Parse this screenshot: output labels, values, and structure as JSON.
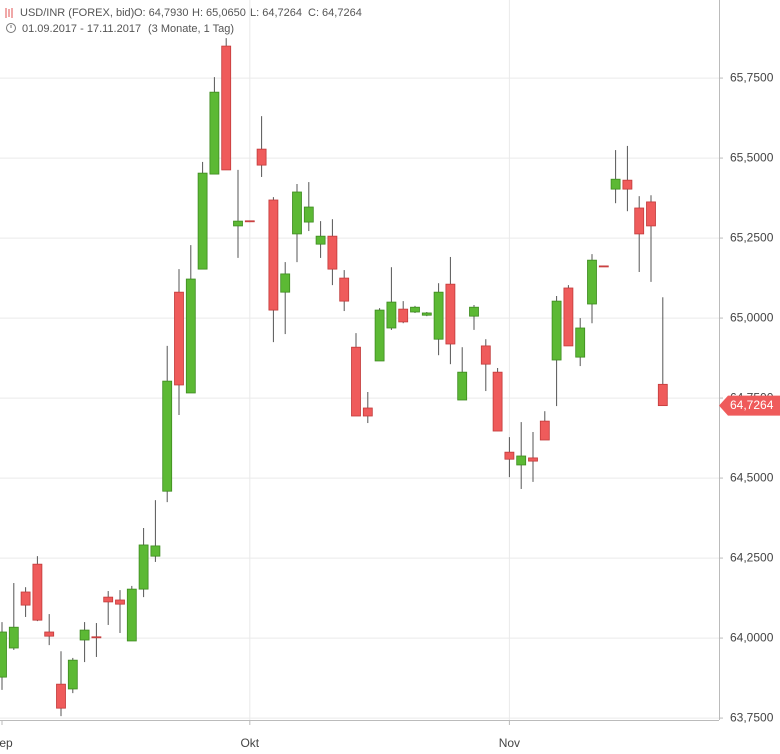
{
  "chart_data": {
    "type": "candlestick",
    "header": {
      "symbol": "USD/INR (FOREX, bid)",
      "open": "O: 64,7930",
      "high": "H: 65,0650",
      "low": "L: 64,7264",
      "close": "C: 64,7264",
      "range": "01.09.2017 - 17.11.2017",
      "period": "(3 Monate, 1 Tag)"
    },
    "categories": [
      "Sep",
      null,
      null,
      null,
      null,
      null,
      null,
      null,
      null,
      null,
      null,
      null,
      null,
      null,
      null,
      null,
      null,
      null,
      null,
      null,
      null,
      "Okt",
      null,
      null,
      null,
      null,
      null,
      null,
      null,
      null,
      null,
      null,
      null,
      null,
      null,
      null,
      null,
      null,
      null,
      null,
      null,
      null,
      null,
      "Nov",
      null,
      null,
      null,
      null,
      null,
      null,
      null,
      null,
      null,
      null,
      null,
      null,
      null
    ],
    "open": [
      63.878,
      63.969,
      64.144,
      64.231,
      64.019,
      63.856,
      63.841,
      63.994,
      64.004,
      64.128,
      64.119,
      63.991,
      64.153,
      64.256,
      64.459,
      65.081,
      64.766,
      65.153,
      65.45,
      65.85,
      65.288,
      65.304,
      65.528,
      65.369,
      65.081,
      65.263,
      65.3,
      65.231,
      65.256,
      65.125,
      64.909,
      64.719,
      64.866,
      64.969,
      65.028,
      65.019,
      65.009,
      64.934,
      65.106,
      64.744,
      65.006,
      64.913,
      64.831,
      64.581,
      64.541,
      64.563,
      64.678,
      64.869,
      65.094,
      64.878,
      65.044,
      65.163,
      65.403,
      65.431,
      65.344,
      65.363,
      64.793
    ],
    "high": [
      64.05,
      64.172,
      64.159,
      64.256,
      64.075,
      63.959,
      63.938,
      64.05,
      64.047,
      64.147,
      64.15,
      64.163,
      64.344,
      64.431,
      64.913,
      65.153,
      65.228,
      65.488,
      65.753,
      65.875,
      65.463,
      65.305,
      65.631,
      65.378,
      65.175,
      65.419,
      65.425,
      65.303,
      65.309,
      65.15,
      64.953,
      64.769,
      65.031,
      65.159,
      65.053,
      65.038,
      65.019,
      65.109,
      65.191,
      64.909,
      65.041,
      64.934,
      64.844,
      64.628,
      64.675,
      64.644,
      64.709,
      65.069,
      65.103,
      65.0,
      65.2,
      65.164,
      65.525,
      65.538,
      65.381,
      65.384,
      65.065
    ],
    "low": [
      63.838,
      63.963,
      64.066,
      64.053,
      63.978,
      63.756,
      63.828,
      63.925,
      63.941,
      64.041,
      64.016,
      63.991,
      64.128,
      64.238,
      64.425,
      64.697,
      64.766,
      65.153,
      65.45,
      65.463,
      65.188,
      65.3,
      65.441,
      64.925,
      64.95,
      65.175,
      65.272,
      65.188,
      65.103,
      65.022,
      64.694,
      64.672,
      64.866,
      64.963,
      64.984,
      65.016,
      65.006,
      64.884,
      64.856,
      64.744,
      64.963,
      64.772,
      64.647,
      64.503,
      64.466,
      64.488,
      64.619,
      64.725,
      64.913,
      64.85,
      64.984,
      65.16,
      65.359,
      65.334,
      65.144,
      65.113,
      64.7264
    ],
    "close": [
      64.019,
      64.034,
      64.103,
      64.056,
      64.006,
      63.781,
      63.931,
      64.025,
      64.001,
      64.113,
      64.106,
      64.153,
      64.291,
      64.288,
      64.803,
      64.791,
      65.122,
      65.453,
      65.706,
      65.463,
      65.303,
      65.302,
      65.478,
      65.025,
      65.138,
      65.394,
      65.347,
      65.256,
      65.153,
      65.053,
      64.694,
      64.694,
      65.025,
      65.05,
      64.988,
      65.034,
      65.016,
      65.081,
      64.919,
      64.831,
      65.034,
      64.856,
      64.647,
      64.559,
      64.569,
      64.553,
      64.619,
      65.053,
      64.913,
      64.969,
      65.181,
      65.161,
      65.434,
      65.403,
      65.263,
      65.288,
      64.7264
    ],
    "up_color": "#5cb934",
    "down_color": "#ef5b5b",
    "ylim": [
      63.744,
      65.994
    ],
    "yticks": [
      {
        "value": 63.75,
        "label": "63,7500"
      },
      {
        "value": 64.0,
        "label": "64,0000"
      },
      {
        "value": 64.25,
        "label": "64,2500"
      },
      {
        "value": 64.5,
        "label": "64,5000"
      },
      {
        "value": 64.75,
        "label": "64,7500"
      },
      {
        "value": 65.0,
        "label": "65,0000"
      },
      {
        "value": 65.25,
        "label": "65,2500"
      },
      {
        "value": 65.5,
        "label": "65,5000"
      },
      {
        "value": 65.75,
        "label": "65,7500"
      }
    ],
    "grid": true,
    "last_price": {
      "value": 64.7264,
      "label": "64,7264"
    }
  }
}
